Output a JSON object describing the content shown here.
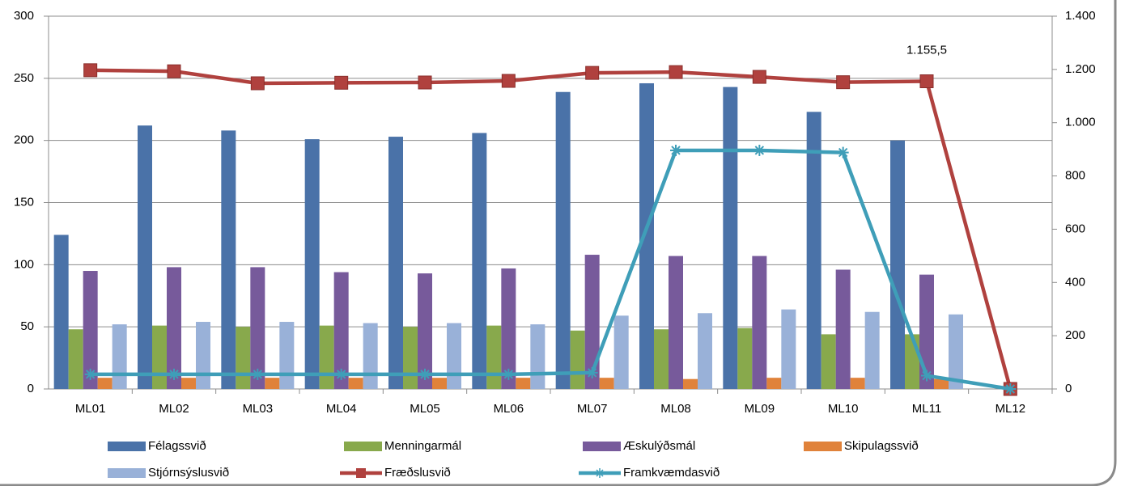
{
  "chart_data": {
    "type": "bar",
    "categories": [
      "ML01",
      "ML02",
      "ML03",
      "ML04",
      "ML05",
      "ML06",
      "ML07",
      "ML08",
      "ML09",
      "ML10",
      "ML11",
      "ML12"
    ],
    "ylim": [
      0,
      300
    ],
    "yticks": [
      0,
      50,
      100,
      150,
      200,
      250,
      300
    ],
    "y2lim": [
      0,
      1400
    ],
    "y2ticks": [
      0,
      200,
      400,
      600,
      800,
      {
        "value": 1000,
        "label": "1.000"
      },
      {
        "value": 1200,
        "label": "1.200"
      },
      {
        "value": 1400,
        "label": "1.400"
      }
    ],
    "grid": true,
    "legend": "bottom",
    "series": [
      {
        "name": "Félagssvið",
        "type": "bar",
        "color": "#4a72a8",
        "values": [
          124,
          212,
          208,
          201,
          203,
          206,
          239,
          246,
          243,
          223,
          200,
          null
        ]
      },
      {
        "name": "Menningarmál",
        "type": "bar",
        "color": "#88a94c",
        "values": [
          48,
          51,
          50,
          51,
          50,
          51,
          47,
          48,
          49,
          44,
          44,
          null
        ]
      },
      {
        "name": "Æskulýðsmál",
        "type": "bar",
        "color": "#775a9b",
        "values": [
          95,
          98,
          98,
          94,
          93,
          97,
          108,
          107,
          107,
          96,
          92,
          null
        ]
      },
      {
        "name": "Skipulagssvið",
        "type": "bar",
        "color": "#e0823a",
        "values": [
          9,
          9,
          9,
          9,
          9,
          9,
          9,
          8,
          9,
          9,
          8,
          null
        ]
      },
      {
        "name": "Stjórnsýslusvið",
        "type": "bar",
        "color": "#99b1d8",
        "values": [
          52,
          54,
          54,
          53,
          53,
          52,
          59,
          61,
          64,
          62,
          60,
          null
        ]
      },
      {
        "name": "Fræðslusvið",
        "type": "line",
        "axis": "y2",
        "marker": "square",
        "color": "#b0413e",
        "values": [
          1197,
          1193,
          1148,
          1150,
          1151,
          1157,
          1187,
          1190,
          1172,
          1152,
          1155.5,
          0
        ],
        "value_labels": [
          null,
          null,
          null,
          null,
          null,
          null,
          null,
          null,
          null,
          null,
          "1.155,5",
          null
        ]
      },
      {
        "name": "Framkvæmdasvið",
        "type": "line",
        "axis": "y2",
        "marker": "asterisk",
        "color": "#3f9eb8",
        "values": [
          55,
          55,
          55,
          55,
          55,
          55,
          61,
          896,
          896,
          888,
          50,
          0
        ]
      }
    ]
  }
}
